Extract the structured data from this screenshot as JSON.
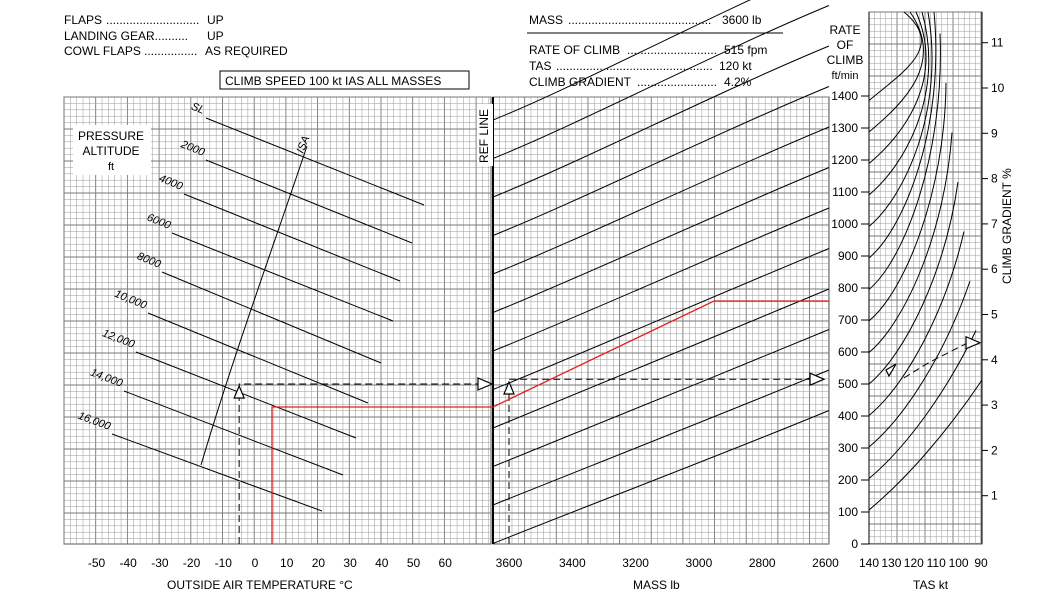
{
  "config_left": [
    {
      "label": "FLAPS",
      "dots": "............................",
      "value": "UP"
    },
    {
      "label": "LANDING GEAR",
      "dots": "............",
      "value": "UP"
    },
    {
      "label": "COWL FLAPS",
      "dots": "................",
      "value": "AS REQUIRED"
    }
  ],
  "climb_speed_box": "CLIMB SPEED  100 kt  IAS   ALL MASSES",
  "example": [
    {
      "label": "MASS",
      "dots": "...........................................",
      "value": "3600 lb"
    },
    {
      "label": "RATE OF CLIMB",
      "dots": "...........................",
      "value": "515 fpm"
    },
    {
      "label": "TAS",
      "dots": "...............................................",
      "value": "120 kt"
    },
    {
      "label": "CLIMB GRADIENT",
      "dots": "........................",
      "value": "4.2%"
    }
  ],
  "colors": {
    "grid": "#9a9a9a",
    "curve": "#000000",
    "example_path": "#e02020"
  },
  "chart_data": {
    "type": "nomogram",
    "panels": {
      "temperature": {
        "xlabel": "OUTSIDE AIR TEMPERATURE   °C",
        "ticks": [
          "-50",
          "-40",
          "-30",
          "-20",
          "-10",
          "0",
          "10",
          "20",
          "30",
          "40",
          "50",
          "60"
        ],
        "ylabel_lines": [
          "PRESSURE",
          "ALTITUDE",
          "ft"
        ],
        "altitude_lines": [
          "SL",
          "2000",
          "4000",
          "6000",
          "8000",
          "10,000",
          "12,000",
          "14,000",
          "16,000"
        ],
        "isa_label": "ISA"
      },
      "ref_line_label": "REF LINE",
      "mass": {
        "xlabel": "MASS lb",
        "ticks": [
          "3600",
          "3400",
          "3200",
          "3000",
          "2800",
          "2600"
        ],
        "xlim": [
          3650,
          2600
        ]
      },
      "rate_of_climb": {
        "title_lines": [
          "RATE",
          "OF",
          "CLIMB",
          "ft/min"
        ],
        "ticks": [
          "0",
          "100",
          "200",
          "300",
          "400",
          "500",
          "600",
          "700",
          "800",
          "900",
          "1000",
          "1100",
          "1200",
          "1300",
          "1400"
        ],
        "ylim": [
          0,
          1400
        ]
      },
      "tas": {
        "xlabel": "TAS kt",
        "ticks": [
          "140",
          "130",
          "120",
          "110",
          "100",
          "90"
        ],
        "xlim": [
          140,
          90
        ]
      },
      "climb_gradient": {
        "label": "CLIMB GRADIENT  %",
        "ticks": [
          "1",
          "2",
          "3",
          "4",
          "5",
          "6",
          "7",
          "8",
          "9",
          "10",
          "11"
        ]
      }
    },
    "example": {
      "oat_c": -5,
      "pressure_altitude_ft": 14000,
      "mass_lb": 3600,
      "rate_of_climb_fpm": 515,
      "tas_kt": 120,
      "climb_gradient_pct": 4.2
    }
  }
}
